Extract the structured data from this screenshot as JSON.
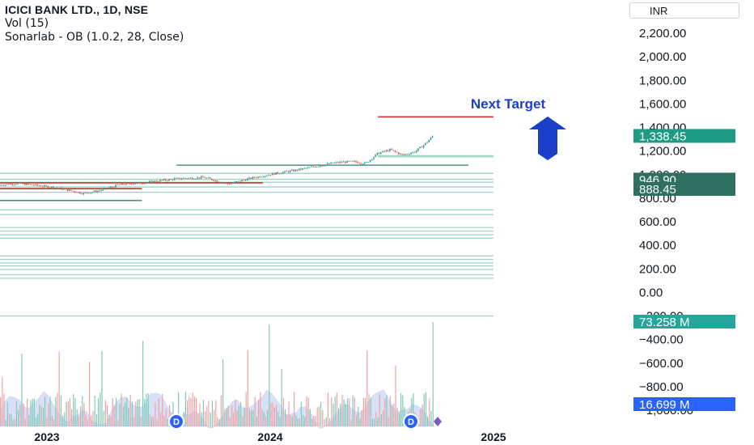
{
  "legend": {
    "symbol": "ICICI BANK LTD., 1D, NSE",
    "volume": "Vol (15)",
    "indicator": "Sonarlab - OB (1.0.2, 28, Close)"
  },
  "currency": "INR",
  "chart_data": {
    "type": "candlestick",
    "x_tick_labels": [
      "2023",
      "2024",
      "2025"
    ],
    "x_tick_dates": [
      "2023-01-01",
      "2024-01-01",
      "2025-01-01"
    ],
    "date_range": [
      "2022-10-01",
      "2024-12-31"
    ],
    "price_ylim": [
      -1000,
      2300
    ],
    "y_tick_labels": [
      "2,200.00",
      "2,000.00",
      "1,800.00",
      "1,600.00",
      "1,400.00",
      "1,200.00",
      "1,000.00",
      "800.00",
      "600.00",
      "400.00",
      "200.00",
      "0.00",
      "−200.00",
      "−400.00",
      "−600.00",
      "−800.00",
      "−1,000.00"
    ],
    "y_tick_values": [
      2200,
      2000,
      1800,
      1600,
      1400,
      1200,
      1000,
      800,
      600,
      400,
      200,
      0,
      -200,
      -400,
      -600,
      -800,
      -1000
    ],
    "price_path": [
      {
        "date": "2022-10-01",
        "price": 905
      },
      {
        "date": "2022-11-15",
        "price": 925
      },
      {
        "date": "2022-12-20",
        "price": 905
      },
      {
        "date": "2023-01-20",
        "price": 885
      },
      {
        "date": "2023-03-01",
        "price": 840
      },
      {
        "date": "2023-03-25",
        "price": 860
      },
      {
        "date": "2023-05-01",
        "price": 915
      },
      {
        "date": "2023-06-15",
        "price": 935
      },
      {
        "date": "2023-08-01",
        "price": 965
      },
      {
        "date": "2023-09-15",
        "price": 975
      },
      {
        "date": "2023-10-25",
        "price": 920
      },
      {
        "date": "2023-12-01",
        "price": 970
      },
      {
        "date": "2024-01-10",
        "price": 1010
      },
      {
        "date": "2024-02-10",
        "price": 1035
      },
      {
        "date": "2024-03-10",
        "price": 1065
      },
      {
        "date": "2024-04-05",
        "price": 1090
      },
      {
        "date": "2024-04-25",
        "price": 1105
      },
      {
        "date": "2024-05-15",
        "price": 1110
      },
      {
        "date": "2024-06-05",
        "price": 1095
      },
      {
        "date": "2024-06-25",
        "price": 1180
      },
      {
        "date": "2024-07-15",
        "price": 1210
      },
      {
        "date": "2024-08-05",
        "price": 1165
      },
      {
        "date": "2024-08-25",
        "price": 1195
      },
      {
        "date": "2024-09-10",
        "price": 1260
      },
      {
        "date": "2024-09-25",
        "price": 1338
      }
    ],
    "price_tags": [
      {
        "label": "1,338.45",
        "value": 1338.45,
        "color": "#1e9c83"
      },
      {
        "label": "946.90",
        "value": 946.9,
        "color": "#2f6f60"
      },
      {
        "label": "888.45",
        "value": 888.45,
        "color": "#2f6f60"
      }
    ],
    "volume_tags": [
      {
        "label": "73.258 M",
        "value": 73.258,
        "color": "#26a69a"
      },
      {
        "label": "16.699 M",
        "value": 16.699,
        "color": "#2962ff"
      }
    ],
    "order_block_lines": [
      {
        "value": 880,
        "from": "2022-10-01",
        "to": "2023-06-05",
        "color": "#2f7d6b"
      },
      {
        "value": 780,
        "from": "2022-10-01",
        "to": "2023-06-05",
        "color": "#2f7d6b"
      },
      {
        "value": 1080,
        "from": "2023-08-01",
        "to": "2024-11-20",
        "color": "#2f7d6b"
      },
      {
        "value": 1150,
        "from": "2024-06-25",
        "to": "2024-12-31",
        "color": "#9fd3c3"
      },
      {
        "value": 1160,
        "from": "2024-06-25",
        "to": "2024-12-31",
        "color": "#9fd3c3"
      },
      {
        "value": 1010,
        "from": "2022-10-01",
        "to": "2024-12-31",
        "color": "#9fd3c3"
      },
      {
        "value": 960,
        "from": "2022-10-01",
        "to": "2024-12-31",
        "color": "#9fd3c3"
      },
      {
        "value": 935,
        "from": "2022-10-01",
        "to": "2024-12-31",
        "color": "#9fd3c3"
      },
      {
        "value": 895,
        "from": "2022-10-01",
        "to": "2024-12-31",
        "color": "#9fd3c3"
      },
      {
        "value": 850,
        "from": "2022-10-01",
        "to": "2024-12-31",
        "color": "#9fd3c3"
      },
      {
        "value": 700,
        "from": "2022-10-01",
        "to": "2024-12-31",
        "color": "#9fd3c3"
      },
      {
        "value": 660,
        "from": "2022-10-01",
        "to": "2024-12-31",
        "color": "#9fd3c3"
      },
      {
        "value": 550,
        "from": "2022-10-01",
        "to": "2024-12-31",
        "color": "#9fd3c3"
      },
      {
        "value": 520,
        "from": "2022-10-01",
        "to": "2024-12-31",
        "color": "#9fd3c3"
      },
      {
        "value": 490,
        "from": "2022-10-01",
        "to": "2024-12-31",
        "color": "#9fd3c3"
      },
      {
        "value": 460,
        "from": "2022-10-01",
        "to": "2024-12-31",
        "color": "#9fd3c3"
      },
      {
        "value": 310,
        "from": "2022-10-01",
        "to": "2024-12-31",
        "color": "#9fd3c3"
      },
      {
        "value": 280,
        "from": "2022-10-01",
        "to": "2024-12-31",
        "color": "#9fd3c3"
      },
      {
        "value": 250,
        "from": "2022-10-01",
        "to": "2024-12-31",
        "color": "#9fd3c3"
      },
      {
        "value": 225,
        "from": "2022-10-01",
        "to": "2024-12-31",
        "color": "#9fd3c3"
      },
      {
        "value": 195,
        "from": "2022-10-01",
        "to": "2024-12-31",
        "color": "#9fd3c3"
      },
      {
        "value": 150,
        "from": "2022-10-01",
        "to": "2024-12-31",
        "color": "#9fd3c3"
      },
      {
        "value": 120,
        "from": "2022-10-01",
        "to": "2024-12-31",
        "color": "#9fd3c3"
      },
      {
        "value": -200,
        "from": "2022-10-01",
        "to": "2024-12-31",
        "color": "#9fd3c3"
      }
    ],
    "resistance_lines": [
      {
        "value": 930,
        "from": "2022-10-01",
        "to": "2023-12-20",
        "color": "#d32f2f"
      },
      {
        "value": 880,
        "from": "2022-10-01",
        "to": "2023-06-05",
        "color": "#d32f2f"
      },
      {
        "value": 1490,
        "from": "2024-06-25",
        "to": "2024-12-31",
        "color": "#d32f2f"
      }
    ],
    "annotation": {
      "text": "Next Target",
      "color": "#1b3fc9",
      "arrow_color": "#1b3fc9"
    },
    "volume_scale_max": 100,
    "badges": [
      "D",
      "D"
    ],
    "grid": false
  }
}
